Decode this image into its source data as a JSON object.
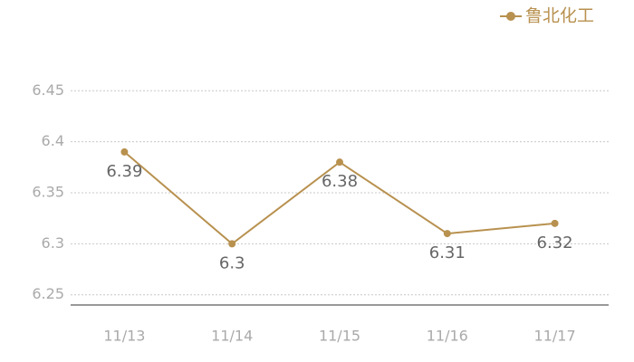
{
  "chart_data": {
    "type": "line",
    "categories": [
      "11/13",
      "11/14",
      "11/15",
      "11/16",
      "11/17"
    ],
    "series": [
      {
        "name": "鲁北化工",
        "color": "#b8914f",
        "values": [
          6.39,
          6.3,
          6.38,
          6.31,
          6.32
        ]
      }
    ],
    "ylim": [
      6.24,
      6.46
    ],
    "yticks": [
      6.25,
      6.3,
      6.35,
      6.4,
      6.45
    ],
    "grid": true,
    "legend": "top-right"
  }
}
